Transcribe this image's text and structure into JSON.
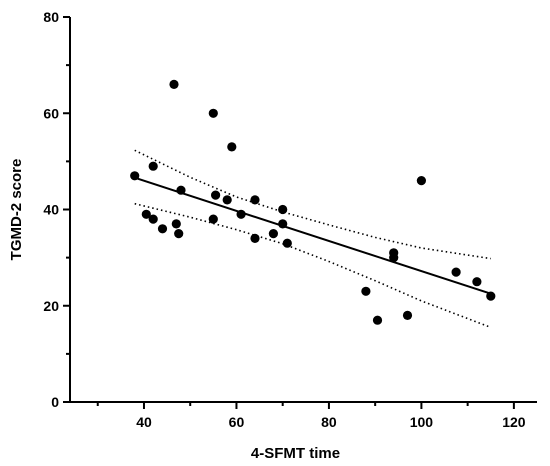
{
  "chart_data": {
    "type": "scatter",
    "title": "",
    "xlabel": "4-SFMT time",
    "ylabel": "TGMD-2 score",
    "xlim": [
      24,
      125
    ],
    "ylim": [
      0,
      80
    ],
    "x_ticks": [
      40,
      60,
      80,
      100,
      120
    ],
    "x_minor_ticks": [
      30,
      50,
      70,
      90,
      110
    ],
    "y_ticks": [
      0,
      20,
      40,
      60,
      80
    ],
    "y_minor_ticks": [
      10,
      30,
      50,
      70
    ],
    "grid": false,
    "legend": "none",
    "points": [
      {
        "x": 38.0,
        "y": 47
      },
      {
        "x": 40.5,
        "y": 39
      },
      {
        "x": 42.0,
        "y": 38
      },
      {
        "x": 42.0,
        "y": 49
      },
      {
        "x": 44.0,
        "y": 36
      },
      {
        "x": 46.5,
        "y": 66
      },
      {
        "x": 47.0,
        "y": 37
      },
      {
        "x": 47.5,
        "y": 35
      },
      {
        "x": 48.0,
        "y": 44
      },
      {
        "x": 55.0,
        "y": 60
      },
      {
        "x": 55.0,
        "y": 38
      },
      {
        "x": 55.5,
        "y": 43
      },
      {
        "x": 58.0,
        "y": 42
      },
      {
        "x": 59.0,
        "y": 53
      },
      {
        "x": 61.0,
        "y": 39
      },
      {
        "x": 64.0,
        "y": 42
      },
      {
        "x": 64.0,
        "y": 34
      },
      {
        "x": 68.0,
        "y": 35
      },
      {
        "x": 70.0,
        "y": 40
      },
      {
        "x": 70.0,
        "y": 37
      },
      {
        "x": 71.0,
        "y": 33
      },
      {
        "x": 88.0,
        "y": 23
      },
      {
        "x": 90.5,
        "y": 17
      },
      {
        "x": 94.0,
        "y": 31
      },
      {
        "x": 94.0,
        "y": 30
      },
      {
        "x": 97.0,
        "y": 18
      },
      {
        "x": 100.0,
        "y": 46
      },
      {
        "x": 107.5,
        "y": 27
      },
      {
        "x": 112.0,
        "y": 25
      },
      {
        "x": 115.0,
        "y": 22
      }
    ],
    "fit_line": [
      {
        "x": 38,
        "y": 46.6
      },
      {
        "x": 115,
        "y": 22.5
      }
    ],
    "ci_upper": [
      {
        "x": 38,
        "y": 52.3
      },
      {
        "x": 50,
        "y": 46.7
      },
      {
        "x": 60,
        "y": 42.6
      },
      {
        "x": 70,
        "y": 39.5
      },
      {
        "x": 80,
        "y": 36.8
      },
      {
        "x": 90,
        "y": 34.2
      },
      {
        "x": 100,
        "y": 32.0
      },
      {
        "x": 115,
        "y": 29.8
      }
    ],
    "ci_lower": [
      {
        "x": 38,
        "y": 41.2
      },
      {
        "x": 50,
        "y": 38.4
      },
      {
        "x": 60,
        "y": 35.8
      },
      {
        "x": 70,
        "y": 32.9
      },
      {
        "x": 80,
        "y": 29.2
      },
      {
        "x": 90,
        "y": 25.2
      },
      {
        "x": 100,
        "y": 21.0
      },
      {
        "x": 115,
        "y": 15.5
      }
    ]
  }
}
